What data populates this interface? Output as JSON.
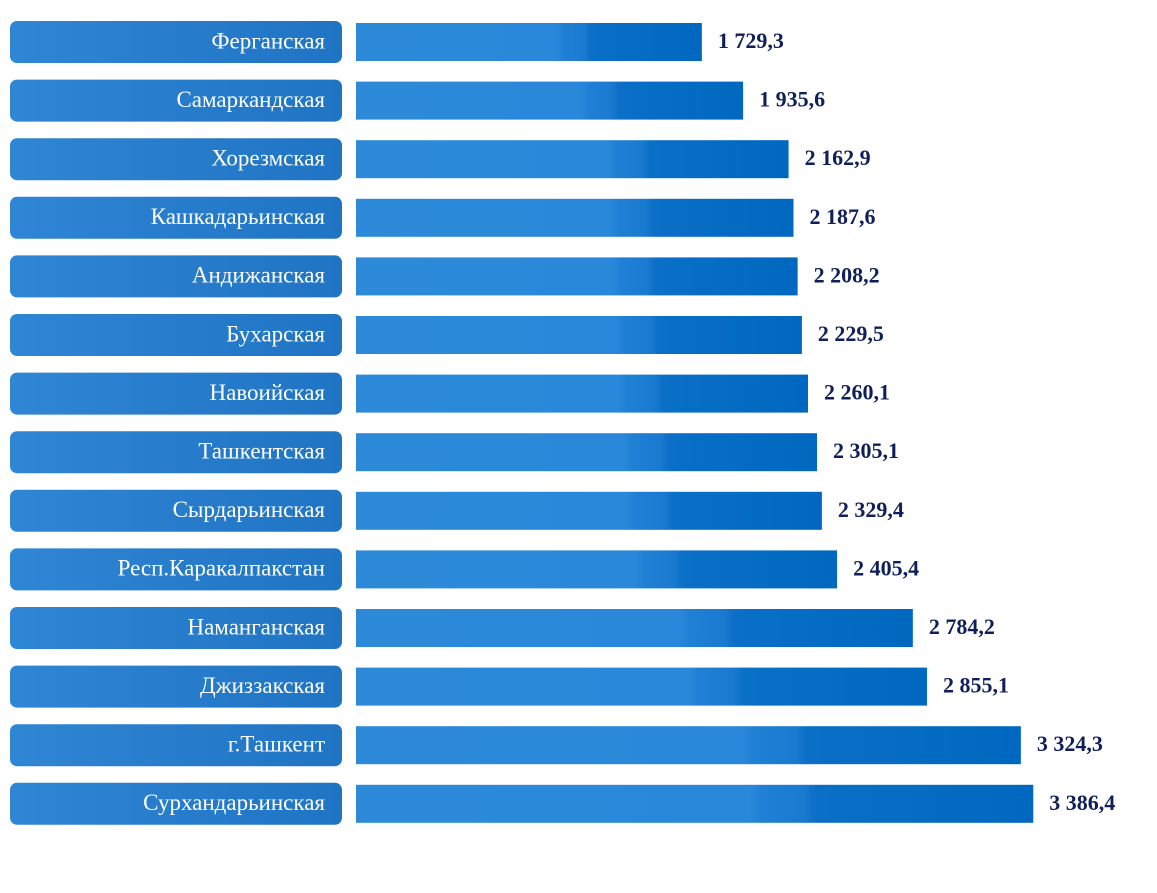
{
  "chart_data": {
    "type": "bar",
    "orientation": "horizontal",
    "categories": [
      "Ферганская",
      "Самаркандская",
      "Хорезмская",
      "Кашкадарьинская",
      "Андижанская",
      "Бухарская",
      "Навоийская",
      "Ташкентская",
      "Сырдарьинская",
      "Респ.Каракалпакстан",
      "Наманганская",
      "Джиззакская",
      "г.Ташкент",
      "Сурхандарьинская"
    ],
    "values": [
      1729.3,
      1935.6,
      2162.9,
      2187.6,
      2208.2,
      2229.5,
      2260.1,
      2305.1,
      2329.4,
      2405.4,
      2784.2,
      2855.1,
      3324.3,
      3386.4
    ],
    "value_labels": [
      "1 729,3",
      "1 935,6",
      "2 162,9",
      "2 187,6",
      "2 208,2",
      "2 229,5",
      "2 260,1",
      "2 305,1",
      "2 329,4",
      "2 405,4",
      "2 784,2",
      "2 855,1",
      "3 324,3",
      "3 386,4"
    ],
    "color": "#1a78cf",
    "xlim": [
      0,
      4000
    ]
  }
}
